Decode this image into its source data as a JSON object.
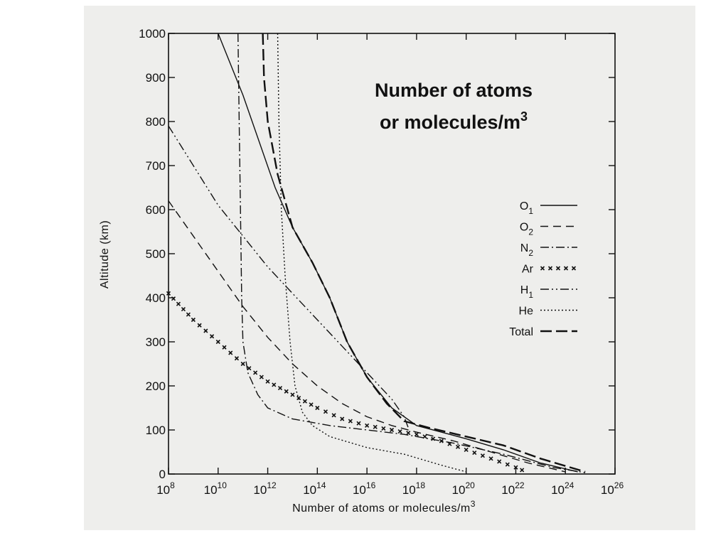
{
  "chart_data": {
    "type": "line",
    "title": "",
    "overlay_title_lines": [
      "Number of atoms",
      "or molecules/m"
    ],
    "overlay_title_superscript": "3",
    "xlabel": "Number of atoms or molecules/m",
    "xlabel_superscript": "3",
    "ylabel": "Altitude (km)",
    "x_scale": "log",
    "xlim": [
      100000000.0,
      1e+26
    ],
    "ylim": [
      0,
      1000
    ],
    "x_tick_base": "10",
    "x_tick_exponents": [
      "8",
      "10",
      "12",
      "14",
      "16",
      "18",
      "20",
      "22",
      "24",
      "26"
    ],
    "x_tick_positions": [
      8,
      10,
      12,
      14,
      16,
      18,
      20,
      22,
      24,
      26
    ],
    "y_ticks": [
      0,
      100,
      200,
      300,
      400,
      500,
      600,
      700,
      800,
      900,
      1000
    ],
    "grid": false,
    "legend_position": "right",
    "series": [
      {
        "name": "O",
        "sub": "1",
        "style": "solid",
        "points": [
          [
            10.0,
            1000
          ],
          [
            11.0,
            860
          ],
          [
            12.3,
            650
          ],
          [
            13.0,
            560
          ],
          [
            13.8,
            480
          ],
          [
            14.5,
            400
          ],
          [
            15.2,
            300
          ],
          [
            16.0,
            220
          ],
          [
            17.0,
            150
          ],
          [
            18.0,
            110
          ],
          [
            19.0,
            95
          ],
          [
            20.0,
            80
          ],
          [
            21.5,
            55
          ],
          [
            23.0,
            25
          ],
          [
            24.5,
            5
          ]
        ]
      },
      {
        "name": "O",
        "sub": "2",
        "style": "dashed",
        "points": [
          [
            8.0,
            620
          ],
          [
            9.0,
            540
          ],
          [
            10.0,
            460
          ],
          [
            11.0,
            380
          ],
          [
            12.0,
            310
          ],
          [
            13.0,
            250
          ],
          [
            14.0,
            200
          ],
          [
            15.0,
            160
          ],
          [
            16.0,
            130
          ],
          [
            17.0,
            110
          ],
          [
            18.0,
            95
          ],
          [
            19.5,
            75
          ],
          [
            21.0,
            50
          ],
          [
            22.5,
            25
          ],
          [
            24.0,
            5
          ]
        ]
      },
      {
        "name": "N",
        "sub": "2",
        "style": "dashdot",
        "points": [
          [
            10.8,
            1000
          ],
          [
            10.85,
            800
          ],
          [
            10.9,
            600
          ],
          [
            10.95,
            400
          ],
          [
            11.0,
            300
          ],
          [
            11.2,
            230
          ],
          [
            11.6,
            180
          ],
          [
            12.0,
            150
          ],
          [
            13.0,
            125
          ],
          [
            14.5,
            110
          ],
          [
            16.0,
            100
          ],
          [
            17.5,
            90
          ],
          [
            19.5,
            70
          ],
          [
            21.5,
            45
          ],
          [
            23.5,
            15
          ],
          [
            24.8,
            3
          ]
        ]
      },
      {
        "name": "Ar",
        "sub": "",
        "style": "crosses",
        "points": [
          [
            8.0,
            410
          ],
          [
            9.0,
            350
          ],
          [
            10.0,
            300
          ],
          [
            11.0,
            250
          ],
          [
            12.0,
            210
          ],
          [
            13.0,
            180
          ],
          [
            14.0,
            150
          ],
          [
            15.0,
            125
          ],
          [
            16.0,
            110
          ],
          [
            17.0,
            100
          ],
          [
            18.0,
            90
          ],
          [
            19.0,
            75
          ],
          [
            20.0,
            55
          ],
          [
            21.0,
            35
          ],
          [
            22.0,
            15
          ],
          [
            22.5,
            3
          ]
        ]
      },
      {
        "name": "H",
        "sub": "1",
        "style": "dashdotdot",
        "points": [
          [
            8.0,
            790
          ],
          [
            9.0,
            700
          ],
          [
            10.0,
            610
          ],
          [
            11.0,
            540
          ],
          [
            12.0,
            470
          ],
          [
            13.0,
            410
          ],
          [
            14.0,
            350
          ],
          [
            15.0,
            290
          ],
          [
            16.0,
            230
          ],
          [
            17.0,
            170
          ],
          [
            17.5,
            130
          ],
          [
            17.7,
            100
          ]
        ]
      },
      {
        "name": "He",
        "sub": "",
        "style": "dotted",
        "points": [
          [
            12.4,
            1000
          ],
          [
            12.45,
            800
          ],
          [
            12.55,
            600
          ],
          [
            12.7,
            450
          ],
          [
            12.9,
            300
          ],
          [
            13.1,
            200
          ],
          [
            13.4,
            140
          ],
          [
            13.8,
            110
          ],
          [
            14.5,
            85
          ],
          [
            16.0,
            60
          ],
          [
            17.5,
            45
          ],
          [
            19.0,
            20
          ],
          [
            20.0,
            5
          ]
        ]
      },
      {
        "name": "Total",
        "sub": "",
        "style": "longdash",
        "points": [
          [
            11.8,
            1000
          ],
          [
            11.85,
            900
          ],
          [
            12.0,
            800
          ],
          [
            12.4,
            680
          ],
          [
            13.0,
            560
          ],
          [
            13.8,
            480
          ],
          [
            14.5,
            400
          ],
          [
            15.2,
            300
          ],
          [
            16.0,
            220
          ],
          [
            16.8,
            160
          ],
          [
            17.5,
            120
          ],
          [
            18.5,
            105
          ],
          [
            20.0,
            85
          ],
          [
            21.5,
            65
          ],
          [
            23.0,
            35
          ],
          [
            24.8,
            5
          ]
        ]
      }
    ]
  }
}
